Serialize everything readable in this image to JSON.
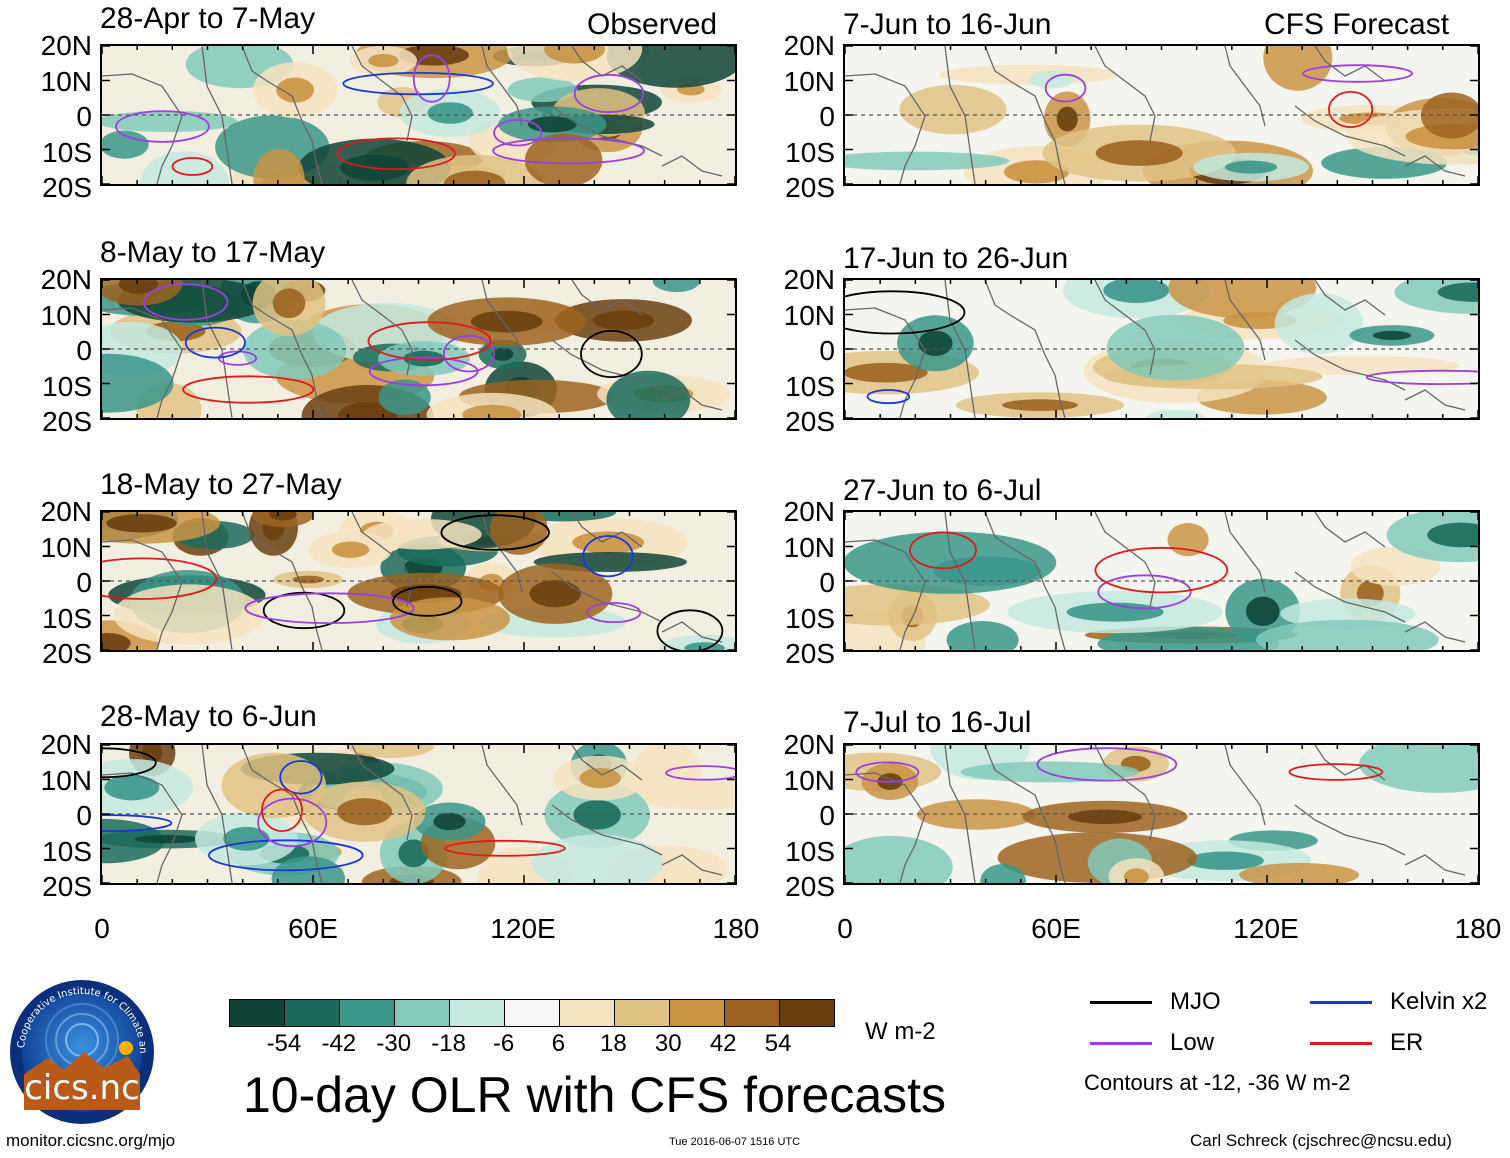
{
  "headers": {
    "left": "Observed",
    "right": "CFS Forecast"
  },
  "panels": [
    {
      "title": "28-Apr to 7-May",
      "column": "observed"
    },
    {
      "title": "8-May to 17-May",
      "column": "observed"
    },
    {
      "title": "18-May to 27-May",
      "column": "observed"
    },
    {
      "title": "28-May to 6-Jun",
      "column": "observed"
    },
    {
      "title": "7-Jun to 16-Jun",
      "column": "forecast"
    },
    {
      "title": "17-Jun to 26-Jun",
      "column": "forecast"
    },
    {
      "title": "27-Jun to 6-Jul",
      "column": "forecast"
    },
    {
      "title": "7-Jul to 16-Jul",
      "column": "forecast"
    }
  ],
  "axes": {
    "y_ticks": [
      "20N",
      "10N",
      "0",
      "10S",
      "20S"
    ],
    "x_ticks": [
      "0",
      "60E",
      "120E",
      "180"
    ]
  },
  "colorbar": {
    "labels": [
      "-54",
      "-42",
      "-30",
      "-18",
      "-6",
      "6",
      "18",
      "30",
      "42",
      "54"
    ],
    "colors": [
      "#0f4537",
      "#1a6b5c",
      "#3a978a",
      "#82cabb",
      "#c4e9df",
      "#f7f7f7",
      "#f4e3bf",
      "#e0c284",
      "#c99444",
      "#9c6420",
      "#6a3f10"
    ],
    "units": "W m-2"
  },
  "legend": {
    "items": [
      {
        "label": "MJO",
        "color": "#000000"
      },
      {
        "label": "Kelvin x2",
        "color": "#1a36d6"
      },
      {
        "label": "Low",
        "color": "#9b3fe0"
      },
      {
        "label": "ER",
        "color": "#e01a1a"
      }
    ],
    "note": "Contours at -12, -36 W m-2"
  },
  "logo": {
    "text": "cics.nc",
    "ring_text": "Cooperative Institute for Climate and Satellites"
  },
  "main_title": "10-day OLR with CFS forecasts",
  "footer": {
    "url": "monitor.cicsnc.org/mjo",
    "timestamp": "Tue 2016-06-07 1516 UTC",
    "credit": "Carl Schreck (cjschrec@ncsu.edu)"
  }
}
